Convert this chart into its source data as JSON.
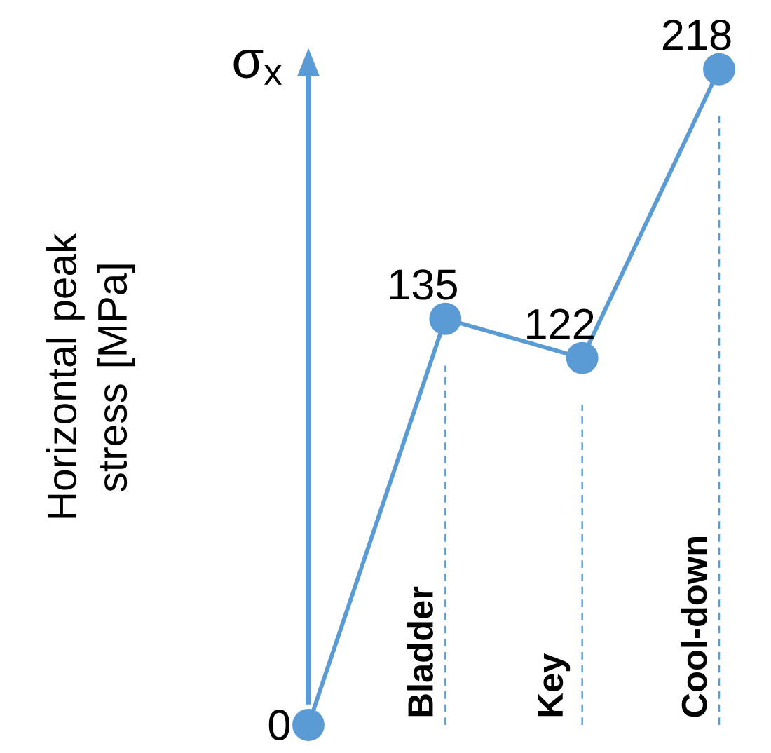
{
  "chart_data": {
    "type": "line",
    "ylabel": "Horizontal peak stress [MPa]",
    "annotations": [
      "σ$_{x}$"
    ],
    "categories": [
      null,
      "Bladder",
      "Key",
      "Cool-down"
    ],
    "values": [
      0,
      135,
      122,
      218
    ],
    "color": "#5b9bd5",
    "marker": "circle",
    "line_style": "solid",
    "data_labels": true,
    "ref_lines": [
      {
        "axis": "x",
        "value": "Bladder",
        "line_style": "dashed",
        "color": "#5b9bd5"
      },
      {
        "axis": "x",
        "value": "Key",
        "line_style": "dashed",
        "color": "#5b9bd5"
      },
      {
        "axis": "x",
        "value": "Cool-down",
        "line_style": "dashed",
        "color": "#5b9bd5"
      }
    ]
  }
}
